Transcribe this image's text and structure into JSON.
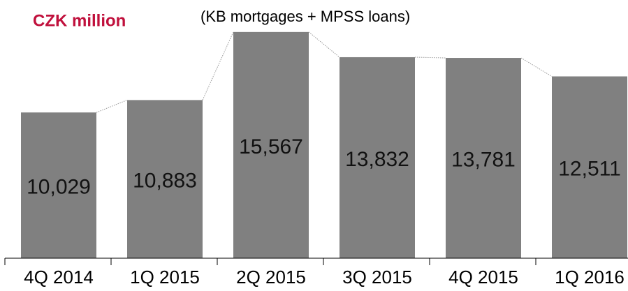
{
  "chart_data": {
    "type": "bar",
    "title": "CZK million",
    "subtitle": "(KB mortgages + MPSS loans)",
    "categories": [
      "4Q 2014",
      "1Q 2015",
      "2Q 2015",
      "3Q 2015",
      "4Q 2015",
      "1Q 2016"
    ],
    "values": [
      10029,
      10883,
      15567,
      13832,
      13781,
      12511
    ],
    "value_labels": [
      "10,029",
      "10,883",
      "15,567",
      "13,832",
      "13,781",
      "12,511"
    ],
    "color": "#808080",
    "ylim": [
      0,
      17000
    ]
  }
}
